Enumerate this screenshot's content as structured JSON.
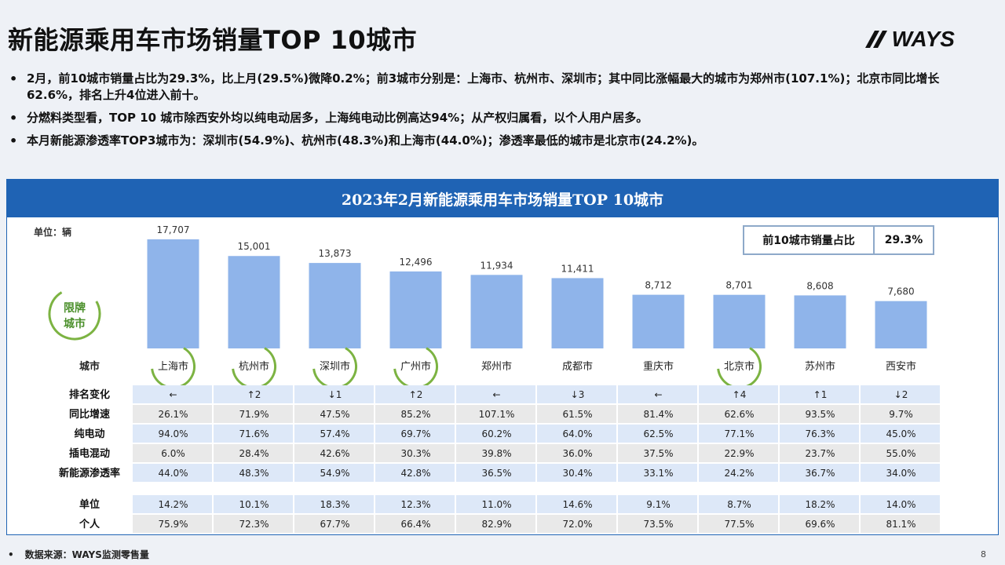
{
  "title": "新能源乘用车市场销量TOP 10城市",
  "logo_text": "WAYS",
  "bullets": [
    "2月，前10城市销量占比为29.3%，比上月(29.5%)微降0.2%；前3城市分别是：上海市、杭州市、深圳市；其中同比涨幅最大的城市为郑州市(107.1%)；北京市同比增长62.6%，排名上升4位进入前十。",
    "分燃料类型看，TOP 10 城市除西安外均以纯电动居多，上海纯电动比例高达94%；从产权归属看，以个人用户居多。",
    "本月新能源渗透率TOP3城市为：深圳市(54.9%)、杭州市(48.3%)和上海市(44.0%)；渗透率最低的城市是北京市(24.2%)。"
  ],
  "panel_title": "2023年2月新能源乘用车市场销量TOP 10城市",
  "unit_label": "单位：辆",
  "share_box": {
    "label": "前10城市销量占比",
    "value": "29.3%"
  },
  "badge_text_line1": "限牌",
  "badge_text_line2": "城市",
  "colors": {
    "bar": "#8fb4ea",
    "header": "#1f63b4",
    "ring": "#7cb342",
    "row_blue": "#dde8f8",
    "row_gray": "#e9e9e9"
  },
  "chart_data": {
    "type": "bar",
    "categories": [
      "上海市",
      "杭州市",
      "深圳市",
      "广州市",
      "郑州市",
      "成都市",
      "重庆市",
      "北京市",
      "苏州市",
      "西安市"
    ],
    "values": [
      17707,
      15001,
      13873,
      12496,
      11934,
      11411,
      8712,
      8701,
      8608,
      7680
    ],
    "value_labels": [
      "17,707",
      "15,001",
      "13,873",
      "12,496",
      "11,934",
      "11,411",
      "8,712",
      "8,701",
      "8,608",
      "7,680"
    ],
    "ylabel": "单位：辆",
    "ylim": [
      0,
      17707
    ],
    "restricted_cities": [
      "上海市",
      "杭州市",
      "深圳市",
      "广州市",
      "北京市"
    ],
    "category_header": "城市"
  },
  "table": {
    "rows": [
      {
        "label": "排名变化",
        "cells": [
          "←",
          "↑2",
          "↓1",
          "↑2",
          "←",
          "↓3",
          "←",
          "↑4",
          "↑1",
          "↓2"
        ],
        "style": "blue"
      },
      {
        "label": "同比增速",
        "cells": [
          "26.1%",
          "71.9%",
          "47.5%",
          "85.2%",
          "107.1%",
          "61.5%",
          "81.4%",
          "62.6%",
          "93.5%",
          "9.7%"
        ],
        "style": "gray"
      },
      {
        "label": "纯电动",
        "cells": [
          "94.0%",
          "71.6%",
          "57.4%",
          "69.7%",
          "60.2%",
          "64.0%",
          "62.5%",
          "77.1%",
          "76.3%",
          "45.0%"
        ],
        "style": "blue"
      },
      {
        "label": "插电混动",
        "cells": [
          "6.0%",
          "28.4%",
          "42.6%",
          "30.3%",
          "39.8%",
          "36.0%",
          "37.5%",
          "22.9%",
          "23.7%",
          "55.0%"
        ],
        "style": "gray"
      },
      {
        "label": "新能源渗透率",
        "cells": [
          "44.0%",
          "48.3%",
          "54.9%",
          "42.8%",
          "36.5%",
          "30.4%",
          "33.1%",
          "24.2%",
          "36.7%",
          "34.0%"
        ],
        "style": "blue"
      },
      {
        "label": "单位",
        "cells": [
          "14.2%",
          "10.1%",
          "18.3%",
          "12.3%",
          "11.0%",
          "14.6%",
          "9.1%",
          "8.7%",
          "18.2%",
          "14.0%"
        ],
        "style": "blue"
      },
      {
        "label": "个人",
        "cells": [
          "75.9%",
          "72.3%",
          "67.7%",
          "66.4%",
          "82.9%",
          "72.0%",
          "73.5%",
          "77.5%",
          "69.6%",
          "81.1%"
        ],
        "style": "gray"
      }
    ]
  },
  "footer_source": "数据来源：WAYS监测零售量",
  "page_number": "8"
}
